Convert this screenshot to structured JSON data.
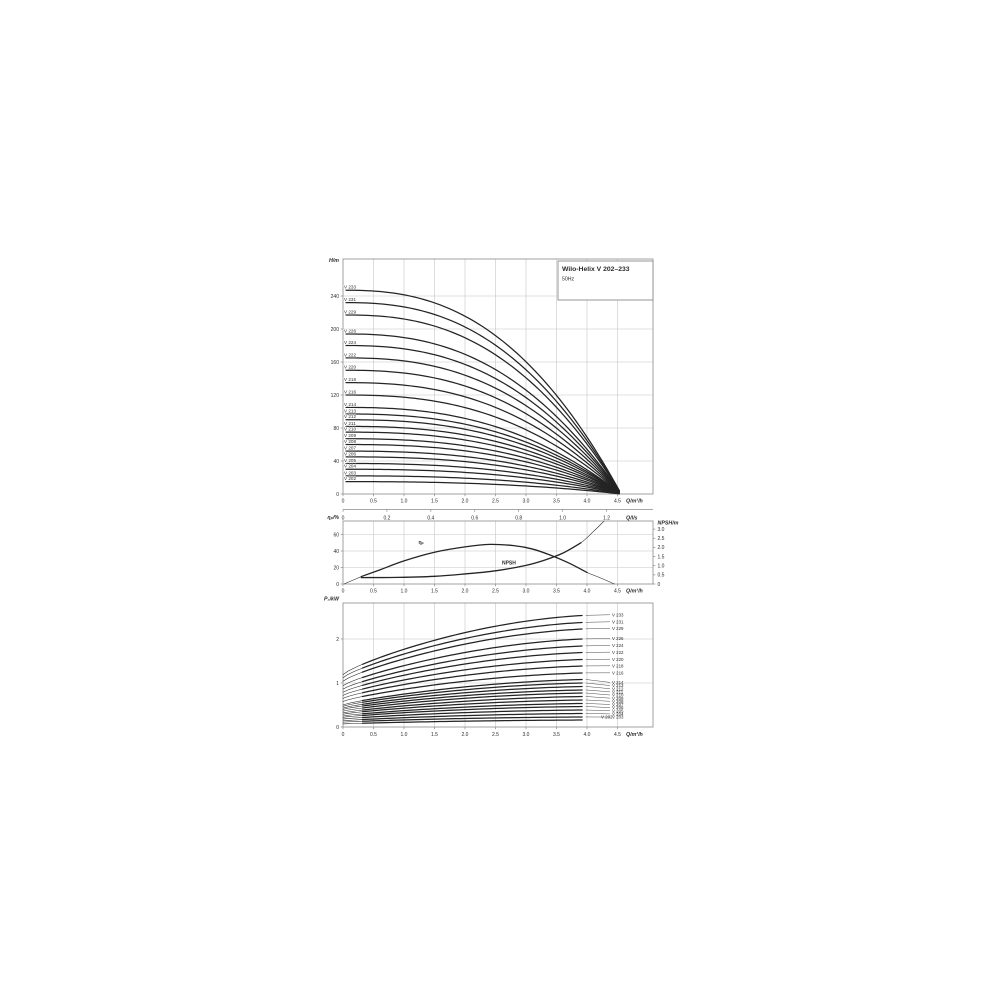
{
  "figure": {
    "title": "Wilo-Helix V 202–233",
    "subtitle": "50Hz"
  },
  "colors": {
    "background": "#ffffff",
    "grid": "#c6c6c6",
    "frame": "#8a8a8a",
    "curve": "#242424",
    "text": "#2b2b2b"
  },
  "chart_data": [
    {
      "id": "head-flow",
      "type": "line",
      "title": "Wilo-Helix V 202–233",
      "subtitle": "50Hz",
      "xlabel": "Q/m³/h",
      "x2label": "Q/l/s",
      "ylabel": "H/m",
      "xlim": [
        0,
        5.1
      ],
      "ylim": [
        0,
        285
      ],
      "xticks": [
        "0",
        "0.5",
        "1.0",
        "1.5",
        "2.0",
        "2.5",
        "3.0",
        "3.5",
        "4.0",
        "4.5"
      ],
      "x2ticks": [
        "0",
        "0.2",
        "0.4",
        "0.6",
        "0.8",
        "1.0",
        "1.2"
      ],
      "yticks": [
        0,
        40,
        80,
        120,
        160,
        200,
        240
      ],
      "grid": true,
      "max_flow_m3h": 4.56,
      "curve_exponent": 2.5,
      "series": [
        {
          "name": "V 233",
          "shutoff_head_m": 247
        },
        {
          "name": "V 231",
          "shutoff_head_m": 232
        },
        {
          "name": "V 229",
          "shutoff_head_m": 217
        },
        {
          "name": "V 226",
          "shutoff_head_m": 194
        },
        {
          "name": "V 224",
          "shutoff_head_m": 180
        },
        {
          "name": "V 222",
          "shutoff_head_m": 165
        },
        {
          "name": "V 220",
          "shutoff_head_m": 150
        },
        {
          "name": "V 218",
          "shutoff_head_m": 135
        },
        {
          "name": "V 216",
          "shutoff_head_m": 120
        },
        {
          "name": "V 214",
          "shutoff_head_m": 105
        },
        {
          "name": "V 213",
          "shutoff_head_m": 97
        },
        {
          "name": "V 212",
          "shutoff_head_m": 90
        },
        {
          "name": "V 211",
          "shutoff_head_m": 82
        },
        {
          "name": "V 210",
          "shutoff_head_m": 75
        },
        {
          "name": "V 209",
          "shutoff_head_m": 67
        },
        {
          "name": "V 208",
          "shutoff_head_m": 60
        },
        {
          "name": "V 207",
          "shutoff_head_m": 52
        },
        {
          "name": "V 206",
          "shutoff_head_m": 45
        },
        {
          "name": "V 205",
          "shutoff_head_m": 37
        },
        {
          "name": "V 204",
          "shutoff_head_m": 30
        },
        {
          "name": "V 203",
          "shutoff_head_m": 22
        },
        {
          "name": "V 202",
          "shutoff_head_m": 15
        }
      ]
    },
    {
      "id": "efficiency-npsh",
      "type": "line",
      "xlabel": "Q/m³/h",
      "ylabel_left": "ηₚ/%",
      "ylabel_right": "NPSH/m",
      "xlim": [
        0,
        5.1
      ],
      "ylim_left": [
        0,
        76
      ],
      "ylim_right": [
        0,
        3.45
      ],
      "xticks": [
        "0",
        "0.5",
        "1.0",
        "1.5",
        "2.0",
        "2.5",
        "3.0",
        "3.5",
        "4.0",
        "4.5"
      ],
      "yticks_left": [
        0,
        20,
        40,
        60
      ],
      "yticks_right": [
        "0",
        "0.5",
        "1.0",
        "1.5",
        "2.0",
        "2.5",
        "3.0"
      ],
      "grid": true,
      "series": [
        {
          "name": "ηₚ",
          "axis": "left",
          "label_pos_q": 1.28,
          "label_pos_v": 47,
          "points": [
            [
              0.02,
              0
            ],
            [
              0.3,
              9
            ],
            [
              0.6,
              17
            ],
            [
              1.0,
              28
            ],
            [
              1.5,
              38.5
            ],
            [
              2.0,
              45
            ],
            [
              2.4,
              48
            ],
            [
              2.8,
              46.5
            ],
            [
              3.1,
              42.5
            ],
            [
              3.4,
              35
            ],
            [
              3.7,
              25.5
            ],
            [
              4.0,
              14
            ],
            [
              4.2,
              8
            ],
            [
              4.45,
              0
            ]
          ]
        },
        {
          "name": "NPSH",
          "axis": "right",
          "label_pos_q": 2.72,
          "label_pos_v": 1.0,
          "points": [
            [
              0.3,
              0.35
            ],
            [
              0.9,
              0.36
            ],
            [
              1.5,
              0.42
            ],
            [
              2.0,
              0.55
            ],
            [
              2.5,
              0.72
            ],
            [
              3.0,
              1.02
            ],
            [
              3.3,
              1.3
            ],
            [
              3.6,
              1.68
            ],
            [
              3.9,
              2.25
            ],
            [
              4.1,
              2.85
            ],
            [
              4.28,
              3.44
            ]
          ]
        }
      ]
    },
    {
      "id": "power-flow",
      "type": "line",
      "xlabel": "Q/m³/h",
      "ylabel": "P₂/kW",
      "xlim": [
        0,
        5.1
      ],
      "ylim": [
        0,
        2.82
      ],
      "xticks": [
        "0",
        "0.5",
        "1.0",
        "1.5",
        "2.0",
        "2.5",
        "3.0",
        "3.5",
        "4.0",
        "4.5"
      ],
      "yticks": [
        0,
        1,
        2
      ],
      "grid": true,
      "series": [
        {
          "name": "V 233",
          "p2_kw_at_q0": 1.19,
          "p2_kw_at_q4": 2.56
        },
        {
          "name": "V 231",
          "p2_kw_at_q0": 1.12,
          "p2_kw_at_q4": 2.4
        },
        {
          "name": "V 229",
          "p2_kw_at_q0": 1.04,
          "p2_kw_at_q4": 2.25
        },
        {
          "name": "V 226",
          "p2_kw_at_q0": 0.94,
          "p2_kw_at_q4": 2.02
        },
        {
          "name": "V 224",
          "p2_kw_at_q0": 0.86,
          "p2_kw_at_q4": 1.86
        },
        {
          "name": "V 222",
          "p2_kw_at_q0": 0.79,
          "p2_kw_at_q4": 1.71
        },
        {
          "name": "V 220",
          "p2_kw_at_q0": 0.72,
          "p2_kw_at_q4": 1.55
        },
        {
          "name": "V 218",
          "p2_kw_at_q0": 0.65,
          "p2_kw_at_q4": 1.4
        },
        {
          "name": "V 216",
          "p2_kw_at_q0": 0.58,
          "p2_kw_at_q4": 1.24
        },
        {
          "name": "V 214",
          "p2_kw_at_q0": 0.5,
          "p2_kw_at_q4": 1.09
        },
        {
          "name": "V 213",
          "p2_kw_at_q0": 0.47,
          "p2_kw_at_q4": 1.01
        },
        {
          "name": "V 212",
          "p2_kw_at_q0": 0.43,
          "p2_kw_at_q4": 0.93
        },
        {
          "name": "V 211",
          "p2_kw_at_q0": 0.4,
          "p2_kw_at_q4": 0.85
        },
        {
          "name": "V 210",
          "p2_kw_at_q0": 0.36,
          "p2_kw_at_q4": 0.78
        },
        {
          "name": "V 209",
          "p2_kw_at_q0": 0.32,
          "p2_kw_at_q4": 0.7
        },
        {
          "name": "V 208",
          "p2_kw_at_q0": 0.29,
          "p2_kw_at_q4": 0.62
        },
        {
          "name": "V 207",
          "p2_kw_at_q0": 0.25,
          "p2_kw_at_q4": 0.54
        },
        {
          "name": "V 206",
          "p2_kw_at_q0": 0.22,
          "p2_kw_at_q4": 0.47
        },
        {
          "name": "V 205",
          "p2_kw_at_q0": 0.18,
          "p2_kw_at_q4": 0.39
        },
        {
          "name": "V 204",
          "p2_kw_at_q0": 0.14,
          "p2_kw_at_q4": 0.31
        },
        {
          "name": "V 203",
          "p2_kw_at_q0": 0.11,
          "p2_kw_at_q4": 0.23
        },
        {
          "name": "V 202",
          "p2_kw_at_q0": 0.07,
          "p2_kw_at_q4": 0.16
        }
      ]
    }
  ]
}
